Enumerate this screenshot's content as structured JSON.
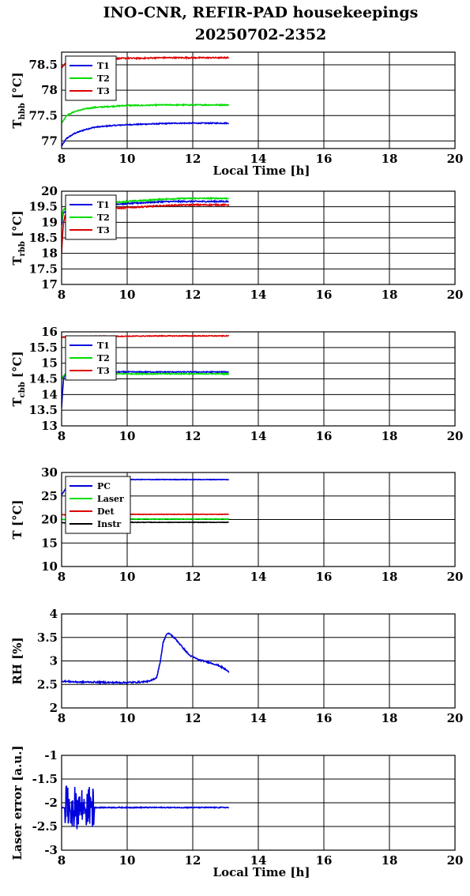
{
  "figure": {
    "title_line1": "INO-CNR, REFIR-PAD housekeepings",
    "title_line2": "20250702-2352"
  },
  "chart_data": [
    {
      "id": "thbb",
      "type": "line",
      "ylabel_main": "T",
      "ylabel_sub": "hbb",
      "ylabel_unit": " [°C]",
      "xlabel": "Local Time [h]",
      "xlim": [
        8,
        20
      ],
      "ylim": [
        76.85,
        78.75
      ],
      "xticks": [
        8,
        10,
        12,
        14,
        16,
        18,
        20
      ],
      "xtick_labels": [
        "8",
        "10",
        "12",
        "14",
        "16",
        "18",
        "20"
      ],
      "yticks": [
        77,
        77.5,
        78,
        78.5
      ],
      "ytick_labels": [
        "77",
        "77.5",
        "78",
        "78.5"
      ],
      "grid": true,
      "legend_position": "top-left",
      "series": [
        {
          "name": "T1",
          "color": "#0000dd",
          "noise": 0.01,
          "x": [
            8.0,
            8.15,
            8.4,
            8.7,
            9.0,
            9.5,
            10.0,
            10.5,
            11.0,
            11.5,
            12.0,
            12.5,
            13.1
          ],
          "y": [
            76.9,
            77.05,
            77.15,
            77.22,
            77.27,
            77.3,
            77.32,
            77.33,
            77.34,
            77.35,
            77.35,
            77.35,
            77.35
          ]
        },
        {
          "name": "T2",
          "color": "#00dd00",
          "noise": 0.01,
          "x": [
            8.0,
            8.15,
            8.4,
            8.7,
            9.0,
            9.5,
            10.0,
            10.5,
            11.0,
            11.5,
            12.0,
            12.5,
            13.1
          ],
          "y": [
            77.35,
            77.5,
            77.58,
            77.63,
            77.66,
            77.68,
            77.7,
            77.7,
            77.71,
            77.71,
            77.71,
            77.71,
            77.71
          ]
        },
        {
          "name": "T3",
          "color": "#dd0000",
          "noise": 0.012,
          "x": [
            8.0,
            8.15,
            8.4,
            8.7,
            9.0,
            9.5,
            10.0,
            10.5,
            11.0,
            11.5,
            12.0,
            12.5,
            13.1
          ],
          "y": [
            78.45,
            78.55,
            78.58,
            78.6,
            78.61,
            78.62,
            78.63,
            78.63,
            78.64,
            78.64,
            78.64,
            78.64,
            78.64
          ]
        }
      ]
    },
    {
      "id": "trbb",
      "type": "line",
      "ylabel_main": "T",
      "ylabel_sub": "rbb",
      "ylabel_unit": " [°C]",
      "xlabel": "",
      "xlim": [
        8,
        20
      ],
      "ylim": [
        17,
        20
      ],
      "xticks": [
        8,
        10,
        12,
        14,
        16,
        18,
        20
      ],
      "xtick_labels": [
        "8",
        "10",
        "12",
        "14",
        "16",
        "18",
        "20"
      ],
      "yticks": [
        17,
        17.5,
        18,
        18.5,
        19,
        19.5,
        20
      ],
      "ytick_labels": [
        "17",
        "17.5",
        "18",
        "18.5",
        "19",
        "19.5",
        "20"
      ],
      "grid": true,
      "legend_position": "top-left",
      "series": [
        {
          "name": "T1",
          "color": "#0000dd",
          "noise": 0.02,
          "x": [
            8.0,
            8.05,
            8.2,
            8.5,
            9.0,
            9.5,
            10.0,
            10.5,
            11.0,
            11.5,
            12.0,
            12.5,
            13.1
          ],
          "y": [
            18.9,
            19.3,
            19.45,
            19.5,
            19.55,
            19.58,
            19.6,
            19.63,
            19.66,
            19.67,
            19.67,
            19.67,
            19.67
          ]
        },
        {
          "name": "T2",
          "color": "#00dd00",
          "noise": 0.02,
          "x": [
            8.0,
            8.05,
            8.2,
            8.5,
            9.0,
            9.5,
            10.0,
            10.5,
            11.0,
            11.5,
            12.0,
            12.5,
            13.1
          ],
          "y": [
            19.0,
            19.4,
            19.5,
            19.55,
            19.6,
            19.63,
            19.67,
            19.7,
            19.74,
            19.76,
            19.77,
            19.77,
            19.77
          ]
        },
        {
          "name": "T3",
          "color": "#dd0000",
          "noise": 0.02,
          "x": [
            8.0,
            8.03,
            8.06,
            8.1,
            8.3,
            8.6,
            9.0,
            9.5,
            10.0,
            10.5,
            11.0,
            11.5,
            12.0,
            13.1
          ],
          "y": [
            18.0,
            18.6,
            19.0,
            19.2,
            19.28,
            19.35,
            19.4,
            19.44,
            19.47,
            19.5,
            19.53,
            19.55,
            19.56,
            19.56
          ]
        }
      ]
    },
    {
      "id": "tcbb",
      "type": "line",
      "ylabel_main": "T",
      "ylabel_sub": "cbb",
      "ylabel_unit": " [°C]",
      "xlabel": "",
      "xlim": [
        8,
        20
      ],
      "ylim": [
        13,
        16
      ],
      "xticks": [
        8,
        10,
        12,
        14,
        16,
        18,
        20
      ],
      "xtick_labels": [
        "8",
        "10",
        "12",
        "14",
        "16",
        "18",
        "20"
      ],
      "yticks": [
        13,
        13.5,
        14,
        14.5,
        15,
        15.5,
        16
      ],
      "ytick_labels": [
        "13",
        "13.5",
        "14",
        "14.5",
        "15",
        "15.5",
        "16"
      ],
      "grid": true,
      "legend_position": "top-left",
      "series": [
        {
          "name": "T1",
          "color": "#0000dd",
          "noise": 0.015,
          "x": [
            8.0,
            8.03,
            8.06,
            8.1,
            8.3,
            9.0,
            10.0,
            11.0,
            12.0,
            13.1
          ],
          "y": [
            13.6,
            14.1,
            14.5,
            14.65,
            14.7,
            14.72,
            14.72,
            14.72,
            14.72,
            14.72
          ]
        },
        {
          "name": "T2",
          "color": "#00dd00",
          "noise": 0.015,
          "x": [
            8.0,
            8.06,
            8.1,
            8.3,
            9.0,
            10.0,
            11.0,
            12.0,
            13.1
          ],
          "y": [
            14.5,
            14.6,
            14.64,
            14.66,
            14.66,
            14.66,
            14.66,
            14.66,
            14.66
          ]
        },
        {
          "name": "T3",
          "color": "#dd0000",
          "noise": 0.012,
          "x": [
            8.0,
            8.1,
            8.5,
            9.0,
            10.0,
            11.0,
            12.0,
            13.1
          ],
          "y": [
            15.82,
            15.84,
            15.85,
            15.86,
            15.86,
            15.87,
            15.87,
            15.87
          ]
        }
      ]
    },
    {
      "id": "temps",
      "type": "line",
      "ylabel_main": "T [°C]",
      "ylabel_sub": "",
      "ylabel_unit": "",
      "xlabel": "",
      "xlim": [
        8,
        20
      ],
      "ylim": [
        10,
        30
      ],
      "xticks": [
        8,
        10,
        12,
        14,
        16,
        18,
        20
      ],
      "xtick_labels": [
        "8",
        "10",
        "12",
        "14",
        "16",
        "18",
        "20"
      ],
      "yticks": [
        10,
        15,
        20,
        25,
        30
      ],
      "ytick_labels": [
        "10",
        "15",
        "20",
        "25",
        "30"
      ],
      "grid": true,
      "legend_position": "top-left",
      "series": [
        {
          "name": "PC",
          "color": "#0000dd",
          "noise": 0.06,
          "x": [
            8.0,
            8.2,
            8.6,
            9.0,
            10.0,
            11.0,
            12.0,
            13.1
          ],
          "y": [
            25.2,
            27.5,
            28.2,
            28.4,
            28.5,
            28.5,
            28.5,
            28.5
          ]
        },
        {
          "name": "Laser",
          "color": "#00dd00",
          "noise": 0.06,
          "x": [
            8.0,
            9.0,
            10.0,
            11.0,
            12.0,
            13.1
          ],
          "y": [
            20.0,
            20.0,
            20.1,
            20.1,
            20.1,
            20.1
          ]
        },
        {
          "name": "Det",
          "color": "#dd0000",
          "noise": 0.05,
          "x": [
            8.0,
            9.0,
            10.0,
            11.0,
            12.0,
            13.1
          ],
          "y": [
            21.0,
            21.0,
            21.1,
            21.1,
            21.1,
            21.1
          ]
        },
        {
          "name": "Instr",
          "color": "#000000",
          "noise": 0.05,
          "x": [
            8.0,
            9.0,
            10.0,
            11.0,
            12.0,
            13.1
          ],
          "y": [
            19.3,
            19.3,
            19.4,
            19.4,
            19.4,
            19.4
          ]
        }
      ]
    },
    {
      "id": "rh",
      "type": "line",
      "ylabel_main": "RH [%]",
      "ylabel_sub": "",
      "ylabel_unit": "",
      "xlabel": "",
      "xlim": [
        8,
        20
      ],
      "ylim": [
        2,
        4
      ],
      "xticks": [
        8,
        10,
        12,
        14,
        16,
        18,
        20
      ],
      "xtick_labels": [
        "8",
        "10",
        "12",
        "14",
        "16",
        "18",
        "20"
      ],
      "yticks": [
        2,
        2.5,
        3,
        3.5,
        4
      ],
      "ytick_labels": [
        "2",
        "2.5",
        "3",
        "3.5",
        "4"
      ],
      "grid": true,
      "legend_position": "none",
      "series": [
        {
          "name": "",
          "color": "#0000dd",
          "noise": 0.015,
          "x": [
            8.0,
            8.5,
            9.0,
            9.5,
            10.0,
            10.4,
            10.7,
            10.9,
            11.0,
            11.1,
            11.2,
            11.3,
            11.5,
            11.7,
            11.9,
            12.2,
            12.5,
            12.8,
            13.0,
            13.1
          ],
          "y": [
            2.57,
            2.55,
            2.55,
            2.54,
            2.54,
            2.55,
            2.57,
            2.65,
            2.95,
            3.4,
            3.57,
            3.58,
            3.45,
            3.28,
            3.12,
            3.02,
            2.97,
            2.9,
            2.82,
            2.76
          ]
        }
      ]
    },
    {
      "id": "laser",
      "type": "line",
      "ylabel_main": "Laser error [a.u.]",
      "ylabel_sub": "",
      "ylabel_unit": "",
      "xlabel": "Local Time [h]",
      "xlim": [
        8,
        20
      ],
      "ylim": [
        -3,
        -1
      ],
      "xticks": [
        8,
        10,
        12,
        14,
        16,
        18,
        20
      ],
      "xtick_labels": [
        "8",
        "10",
        "12",
        "14",
        "16",
        "18",
        "20"
      ],
      "yticks": [
        -3,
        -2.5,
        -2,
        -1.5,
        -1
      ],
      "ytick_labels": [
        "-3",
        "-2.5",
        "-2",
        "-1.5",
        "-1"
      ],
      "grid": true,
      "legend_position": "none",
      "series": [
        {
          "name": "",
          "color": "#0000dd",
          "noise": 0.01,
          "burst": [
            8.1,
            9.0,
            0.45
          ],
          "x": [
            8.0,
            9.0,
            10.0,
            11.0,
            12.0,
            13.1
          ],
          "y": [
            -2.1,
            -2.1,
            -2.1,
            -2.1,
            -2.1,
            -2.1
          ]
        }
      ]
    }
  ]
}
